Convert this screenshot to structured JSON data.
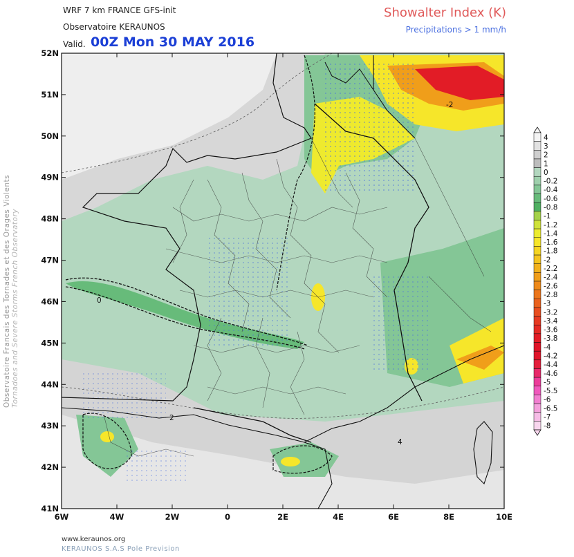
{
  "header": {
    "model_line": "WRF 7 km FRANCE  GFS-init",
    "observatory": "Observatoire KERAUNOS",
    "valid_label": "Valid.",
    "valid_date": "00Z Mon 30 MAY 2016",
    "title": "Showalter Index (K)",
    "subtitle": "Precipitations > 1 mm/h"
  },
  "side_text": {
    "line1": "Observatoire Francais des Tornades et des Orages Violents",
    "line2": "Tornadoes and Severe Storms French Observatory"
  },
  "footer": {
    "url": "www.keraunos.org",
    "company": "KERAUNOS S.A.S Pole Prevision"
  },
  "axes": {
    "lat_labels": [
      "52N",
      "51N",
      "50N",
      "49N",
      "48N",
      "47N",
      "46N",
      "45N",
      "44N",
      "43N",
      "42N",
      "41N"
    ],
    "lon_labels": [
      "6W",
      "4W",
      "2W",
      "0",
      "2E",
      "4E",
      "6E",
      "8E",
      "10E"
    ]
  },
  "colorbar": {
    "levels": [
      {
        "label": "4",
        "color": "#f4f4f4"
      },
      {
        "label": "3",
        "color": "#e2e2e2"
      },
      {
        "label": "2",
        "color": "#cfcfcf"
      },
      {
        "label": "1",
        "color": "#bdbdbd"
      },
      {
        "label": "0",
        "color": "#b3d7bf"
      },
      {
        "label": "-0.2",
        "color": "#9fd0ad"
      },
      {
        "label": "-0.4",
        "color": "#84c696"
      },
      {
        "label": "-0.6",
        "color": "#67bb7a"
      },
      {
        "label": "-0.8",
        "color": "#4fb062"
      },
      {
        "label": "-1",
        "color": "#a5d24a"
      },
      {
        "label": "-1.2",
        "color": "#cfe23a"
      },
      {
        "label": "-1.4",
        "color": "#ecec30"
      },
      {
        "label": "-1.6",
        "color": "#f6e62a"
      },
      {
        "label": "-1.8",
        "color": "#f5d522"
      },
      {
        "label": "-2",
        "color": "#f4c41e"
      },
      {
        "label": "-2.2",
        "color": "#f2b11c"
      },
      {
        "label": "-2.4",
        "color": "#f09e1a"
      },
      {
        "label": "-2.6",
        "color": "#ee8a1a"
      },
      {
        "label": "-2.8",
        "color": "#ec761c"
      },
      {
        "label": "-3",
        "color": "#ea621e"
      },
      {
        "label": "-3.2",
        "color": "#e84e20"
      },
      {
        "label": "-3.4",
        "color": "#e63a22"
      },
      {
        "label": "-3.6",
        "color": "#e42a24"
      },
      {
        "label": "-3.8",
        "color": "#e21c26"
      },
      {
        "label": "-4",
        "color": "#e01428"
      },
      {
        "label": "-4.2",
        "color": "#e0142a"
      },
      {
        "label": "-4.4",
        "color": "#e41e3c"
      },
      {
        "label": "-4.6",
        "color": "#e8286a"
      },
      {
        "label": "-5",
        "color": "#ec3c9a"
      },
      {
        "label": "-5.5",
        "color": "#f058bc"
      },
      {
        "label": "-6",
        "color": "#f27ed0"
      },
      {
        "label": "-6.5",
        "color": "#f4a0dc"
      },
      {
        "label": "-7",
        "color": "#f6bce6"
      },
      {
        "label": "-8",
        "color": "#f8d6ee"
      }
    ]
  },
  "colors": {
    "land_base": "#b3d7bf",
    "sea_grey": "#d4d4d4",
    "yellow": "#eeea2e",
    "orange": "#f09e1a",
    "red": "#e21c26",
    "precip_dots": "#4a6fe0",
    "title_red": "#e05a5a",
    "date_blue": "#1b3fd6"
  },
  "contour_labels": [
    "-2",
    "0",
    "2",
    "4"
  ]
}
